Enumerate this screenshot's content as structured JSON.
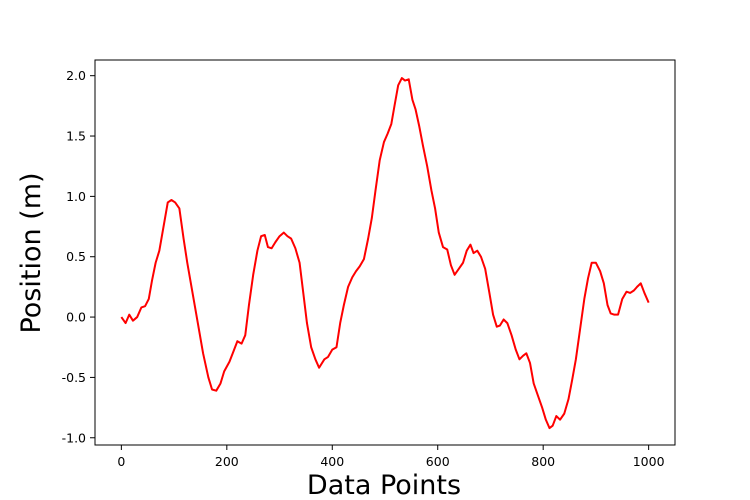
{
  "chart_data": {
    "type": "line",
    "title": "",
    "xlabel": "Data Points",
    "ylabel": "Position (m)",
    "xlim": [
      -50,
      1050
    ],
    "ylim": [
      -1.06,
      2.13
    ],
    "xticks": [
      "0",
      "200",
      "400",
      "600",
      "800",
      "1000"
    ],
    "yticks": [
      "-1.0",
      "-0.5",
      "0.0",
      "0.5",
      "1.0",
      "1.5",
      "2.0"
    ],
    "grid": false,
    "series": [
      {
        "color": "#ff0000",
        "x": [
          0,
          8,
          15,
          22,
          30,
          38,
          45,
          52,
          58,
          65,
          72,
          80,
          88,
          95,
          102,
          110,
          118,
          125,
          135,
          145,
          155,
          165,
          172,
          180,
          188,
          195,
          205,
          213,
          220,
          228,
          235,
          242,
          250,
          258,
          265,
          272,
          278,
          285,
          292,
          300,
          308,
          315,
          322,
          330,
          338,
          345,
          352,
          360,
          368,
          375,
          385,
          392,
          400,
          408,
          415,
          422,
          430,
          438,
          445,
          452,
          460,
          468,
          475,
          482,
          490,
          498,
          505,
          512,
          518,
          525,
          532,
          538,
          545,
          552,
          558,
          565,
          572,
          580,
          588,
          595,
          602,
          610,
          618,
          625,
          632,
          640,
          648,
          655,
          662,
          668,
          675,
          682,
          690,
          698,
          705,
          712,
          718,
          725,
          732,
          740,
          748,
          755,
          762,
          768,
          775,
          782,
          790,
          798,
          805,
          812,
          818,
          825,
          832,
          840,
          848,
          855,
          862,
          870,
          878,
          885,
          892,
          900,
          908,
          915,
          922,
          928,
          935,
          942,
          950,
          958,
          965,
          972,
          978,
          985,
          992,
          1000
        ],
        "y": [
          0.0,
          -0.05,
          0.02,
          -0.03,
          0.0,
          0.08,
          0.09,
          0.15,
          0.3,
          0.45,
          0.55,
          0.75,
          0.95,
          0.97,
          0.95,
          0.9,
          0.65,
          0.45,
          0.2,
          -0.05,
          -0.3,
          -0.5,
          -0.6,
          -0.61,
          -0.55,
          -0.45,
          -0.37,
          -0.28,
          -0.2,
          -0.22,
          -0.15,
          0.1,
          0.35,
          0.55,
          0.67,
          0.68,
          0.58,
          0.57,
          0.62,
          0.67,
          0.7,
          0.67,
          0.65,
          0.57,
          0.45,
          0.2,
          -0.05,
          -0.25,
          -0.35,
          -0.42,
          -0.35,
          -0.33,
          -0.27,
          -0.25,
          -0.05,
          0.1,
          0.25,
          0.33,
          0.38,
          0.42,
          0.48,
          0.65,
          0.82,
          1.05,
          1.3,
          1.45,
          1.52,
          1.6,
          1.75,
          1.92,
          1.98,
          1.96,
          1.97,
          1.8,
          1.72,
          1.58,
          1.42,
          1.25,
          1.05,
          0.9,
          0.7,
          0.58,
          0.56,
          0.43,
          0.35,
          0.4,
          0.45,
          0.55,
          0.6,
          0.53,
          0.55,
          0.5,
          0.4,
          0.2,
          0.02,
          -0.08,
          -0.07,
          -0.02,
          -0.05,
          -0.15,
          -0.27,
          -0.35,
          -0.32,
          -0.3,
          -0.38,
          -0.55,
          -0.65,
          -0.75,
          -0.85,
          -0.92,
          -0.9,
          -0.82,
          -0.85,
          -0.8,
          -0.68,
          -0.52,
          -0.35,
          -0.1,
          0.15,
          0.32,
          0.45,
          0.45,
          0.38,
          0.28,
          0.1,
          0.03,
          0.02,
          0.02,
          0.15,
          0.21,
          0.2,
          0.22,
          0.25,
          0.28,
          0.2,
          0.12
        ]
      }
    ]
  }
}
